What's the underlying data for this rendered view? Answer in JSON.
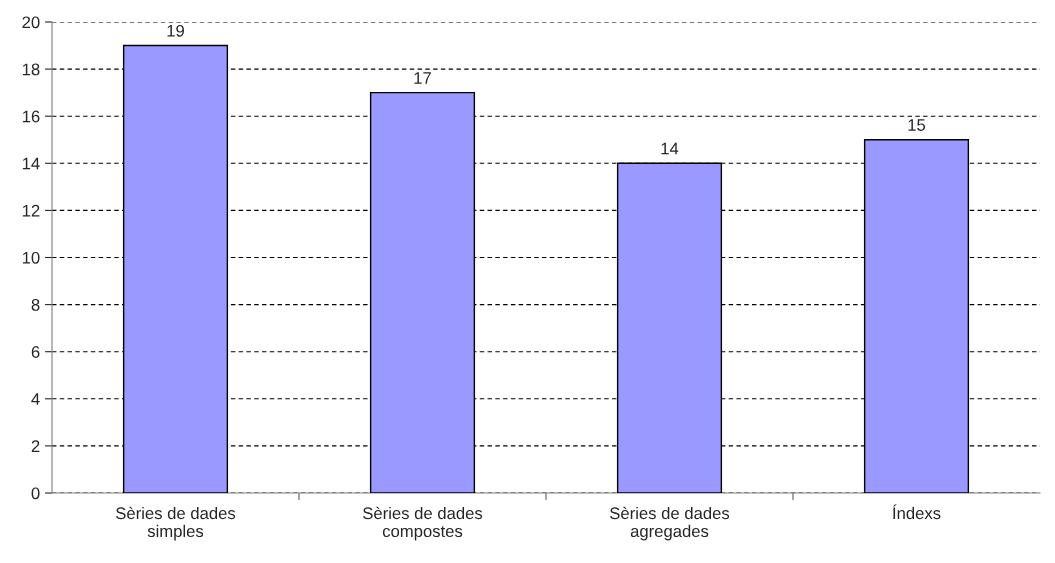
{
  "chart_data": {
    "type": "bar",
    "categories": [
      "Sèries de dades\nsimples",
      "Sèries de dades\ncompostes",
      "Sèries de dades\nagregades",
      "Índexs"
    ],
    "values": [
      19,
      17,
      14,
      15
    ],
    "color": "#9999ff",
    "ylim": [
      0,
      20
    ],
    "yticks": [
      0,
      2,
      4,
      6,
      8,
      10,
      12,
      14,
      16,
      18,
      20
    ],
    "grid": "y",
    "data_labels": true
  }
}
